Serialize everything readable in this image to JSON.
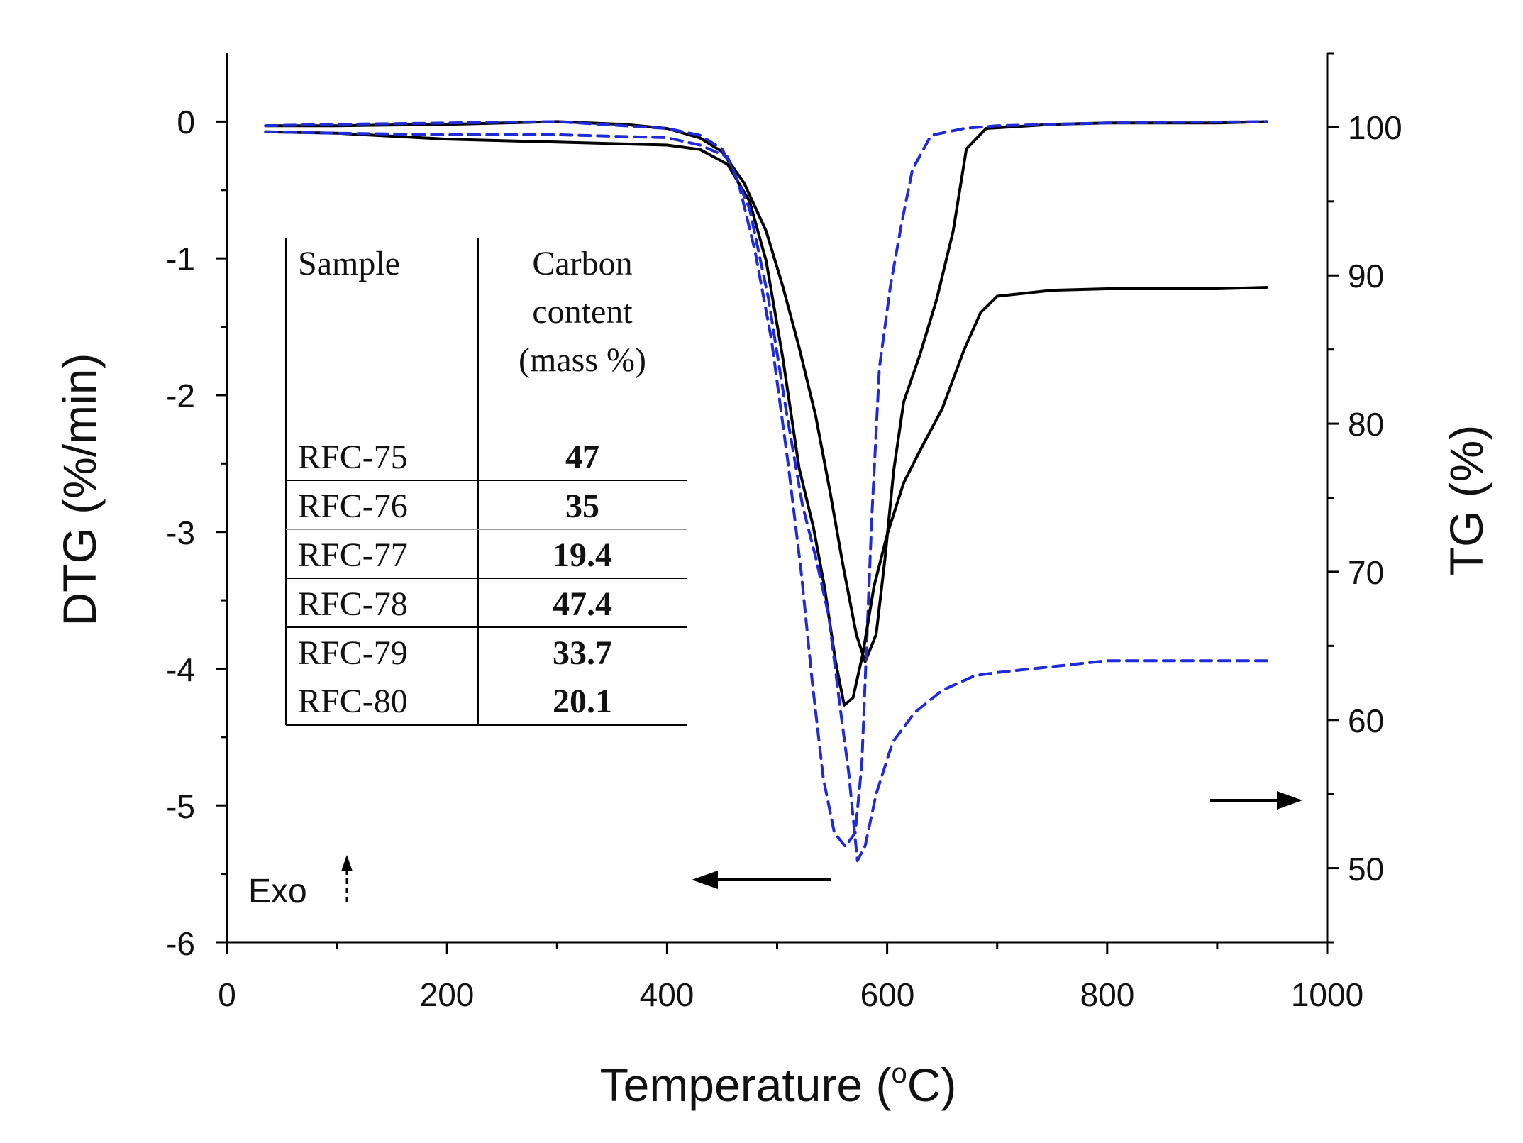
{
  "chart_data": {
    "type": "line",
    "xlabel": "Temperature (°C)",
    "xlabel_main": "Temperature (",
    "xlabel_degree": "o",
    "xlabel_unit": "C)",
    "ylabel_left": "DTG (%/min)",
    "ylabel_right": "TG (%)",
    "xlim": [
      0,
      1000
    ],
    "ylim_left": [
      -6,
      0.5
    ],
    "ylim_right": [
      45,
      105
    ],
    "x_ticks": [
      "0",
      "200",
      "400",
      "600",
      "800",
      "1000"
    ],
    "y_left_ticks": [
      "0",
      "-1",
      "-2",
      "-3",
      "-4",
      "-5",
      "-6"
    ],
    "y_right_ticks": [
      "100",
      "90",
      "80",
      "70",
      "60",
      "50"
    ],
    "annotation": "Exo",
    "series": [
      {
        "name": "DTG solid",
        "axis": "left",
        "style": "solid",
        "color": "#000000",
        "points": [
          [
            35,
            -0.03
          ],
          [
            100,
            -0.03
          ],
          [
            200,
            -0.02
          ],
          [
            300,
            0.0
          ],
          [
            360,
            -0.02
          ],
          [
            400,
            -0.05
          ],
          [
            430,
            -0.12
          ],
          [
            450,
            -0.22
          ],
          [
            470,
            -0.45
          ],
          [
            490,
            -0.8
          ],
          [
            505,
            -1.2
          ],
          [
            520,
            -1.65
          ],
          [
            535,
            -2.15
          ],
          [
            548,
            -2.7
          ],
          [
            560,
            -3.25
          ],
          [
            572,
            -3.75
          ],
          [
            580,
            -3.95
          ],
          [
            590,
            -3.75
          ],
          [
            598,
            -3.2
          ],
          [
            606,
            -2.55
          ],
          [
            615,
            -2.05
          ],
          [
            630,
            -1.7
          ],
          [
            645,
            -1.3
          ],
          [
            660,
            -0.8
          ],
          [
            672,
            -0.2
          ],
          [
            690,
            -0.05
          ],
          [
            750,
            -0.02
          ],
          [
            800,
            -0.01
          ],
          [
            900,
            -0.01
          ],
          [
            945,
            0.0
          ]
        ]
      },
      {
        "name": "DTG dashed",
        "axis": "left",
        "style": "dashed",
        "color": "#1f2ad8",
        "points": [
          [
            35,
            -0.03
          ],
          [
            100,
            -0.02
          ],
          [
            200,
            -0.01
          ],
          [
            300,
            0.0
          ],
          [
            400,
            -0.05
          ],
          [
            430,
            -0.1
          ],
          [
            450,
            -0.2
          ],
          [
            465,
            -0.45
          ],
          [
            480,
            -0.95
          ],
          [
            495,
            -1.6
          ],
          [
            510,
            -2.5
          ],
          [
            522,
            -3.3
          ],
          [
            532,
            -4.1
          ],
          [
            542,
            -4.8
          ],
          [
            552,
            -5.2
          ],
          [
            562,
            -5.3
          ],
          [
            571,
            -5.2
          ],
          [
            577,
            -4.7
          ],
          [
            581,
            -3.9
          ],
          [
            586,
            -2.9
          ],
          [
            593,
            -1.8
          ],
          [
            603,
            -1.2
          ],
          [
            613,
            -0.75
          ],
          [
            623,
            -0.35
          ],
          [
            640,
            -0.1
          ],
          [
            670,
            -0.05
          ],
          [
            700,
            -0.03
          ],
          [
            800,
            -0.01
          ],
          [
            945,
            0.0
          ]
        ]
      },
      {
        "name": "TG solid",
        "axis": "right",
        "style": "solid",
        "color": "#000000",
        "points": [
          [
            35,
            99.7
          ],
          [
            100,
            99.6
          ],
          [
            200,
            99.2
          ],
          [
            300,
            99.0
          ],
          [
            400,
            98.8
          ],
          [
            430,
            98.5
          ],
          [
            455,
            97.5
          ],
          [
            475,
            95.0
          ],
          [
            490,
            91.0
          ],
          [
            505,
            84.5
          ],
          [
            520,
            77.0
          ],
          [
            533,
            73.0
          ],
          [
            543,
            69.0
          ],
          [
            553,
            64.0
          ],
          [
            561,
            61.0
          ],
          [
            569,
            61.5
          ],
          [
            578,
            64.5
          ],
          [
            588,
            69.0
          ],
          [
            600,
            72.5
          ],
          [
            615,
            76.0
          ],
          [
            630,
            78.2
          ],
          [
            650,
            81.0
          ],
          [
            670,
            85.0
          ],
          [
            685,
            87.5
          ],
          [
            700,
            88.6
          ],
          [
            750,
            89.0
          ],
          [
            800,
            89.1
          ],
          [
            900,
            89.1
          ],
          [
            945,
            89.2
          ]
        ]
      },
      {
        "name": "TG dashed",
        "axis": "right",
        "style": "dashed",
        "color": "#1f2ad8",
        "points": [
          [
            35,
            99.7
          ],
          [
            100,
            99.6
          ],
          [
            200,
            99.5
          ],
          [
            300,
            99.5
          ],
          [
            400,
            99.3
          ],
          [
            430,
            98.8
          ],
          [
            455,
            98.0
          ],
          [
            475,
            94.5
          ],
          [
            492,
            88.5
          ],
          [
            508,
            81.0
          ],
          [
            523,
            74.5
          ],
          [
            535,
            71.0
          ],
          [
            547,
            67.0
          ],
          [
            557,
            61.0
          ],
          [
            565,
            56.5
          ],
          [
            573,
            50.5
          ],
          [
            580,
            51.5
          ],
          [
            590,
            55.0
          ],
          [
            605,
            58.5
          ],
          [
            625,
            60.5
          ],
          [
            650,
            62.0
          ],
          [
            680,
            63.0
          ],
          [
            700,
            63.2
          ],
          [
            800,
            64.0
          ],
          [
            900,
            64.0
          ],
          [
            945,
            64.0
          ]
        ]
      }
    ],
    "table": {
      "headers": [
        "Sample",
        "Carbon",
        "content",
        "(mass %)"
      ],
      "rows": [
        {
          "sample": "RFC-75",
          "carbon": "47"
        },
        {
          "sample": "RFC-76",
          "carbon": "35"
        },
        {
          "sample": "RFC-77",
          "carbon": "19.4"
        },
        {
          "sample": "RFC-78",
          "carbon": "47.4"
        },
        {
          "sample": "RFC-79",
          "carbon": "33.7"
        },
        {
          "sample": "RFC-80",
          "carbon": "20.1"
        }
      ]
    }
  }
}
